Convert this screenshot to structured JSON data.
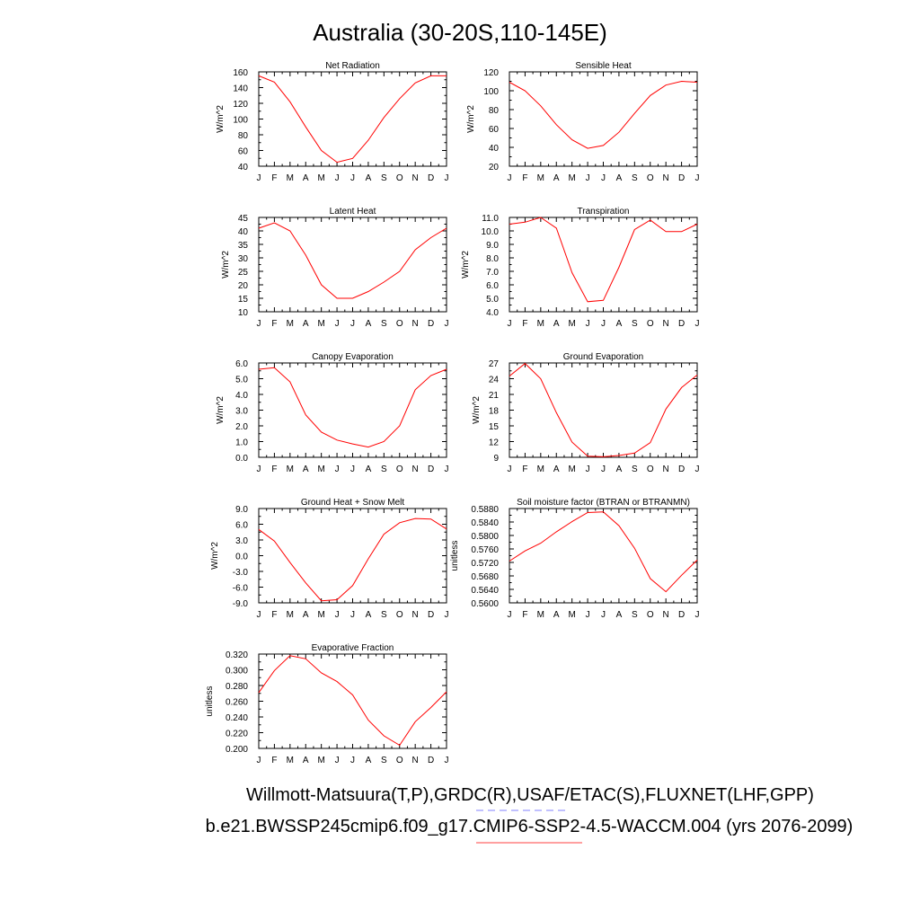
{
  "title": "Australia (30-20S,110-145E)",
  "months": [
    "J",
    "F",
    "M",
    "A",
    "M",
    "J",
    "J",
    "A",
    "S",
    "O",
    "N",
    "D",
    "J"
  ],
  "footer": {
    "line1": "Willmott-Matsuura(T,P),GRDC(R),USAF/ETAC(S),FLUXNET(LHF,GPP)",
    "line2": "b.e21.BWSSP245cmip6.f09_g17.CMIP6-SSP2-4.5-WACCM.004 (yrs 2076-2099)",
    "line1_dash_color": "#8080ff",
    "line2_line_color": "#ff4040"
  },
  "line_color": "#ff0000",
  "chart_data": [
    {
      "type": "line",
      "title": "Net Radiation",
      "ylabel": "W/m^2",
      "ylim": [
        40,
        160
      ],
      "yticks": [
        "40",
        "60",
        "80",
        "100",
        "120",
        "140",
        "160"
      ],
      "x": [
        "J",
        "F",
        "M",
        "A",
        "M",
        "J",
        "J",
        "A",
        "S",
        "O",
        "N",
        "D",
        "J"
      ],
      "values": [
        155,
        147,
        122,
        90,
        60,
        45,
        50,
        73,
        102,
        126,
        146,
        155,
        155
      ]
    },
    {
      "type": "line",
      "title": "Sensible Heat",
      "ylabel": "W/m^2",
      "ylim": [
        20,
        120
      ],
      "yticks": [
        "20",
        "40",
        "60",
        "80",
        "100",
        "120"
      ],
      "x": [
        "J",
        "F",
        "M",
        "A",
        "M",
        "J",
        "J",
        "A",
        "S",
        "O",
        "N",
        "D",
        "J"
      ],
      "values": [
        109,
        100,
        84,
        64,
        48,
        39,
        42,
        56,
        76,
        95,
        106,
        110,
        109
      ]
    },
    {
      "type": "line",
      "title": "Latent Heat",
      "ylabel": "W/m^2",
      "ylim": [
        10,
        45
      ],
      "yticks": [
        "10",
        "15",
        "20",
        "25",
        "30",
        "35",
        "40",
        "45"
      ],
      "x": [
        "J",
        "F",
        "M",
        "A",
        "M",
        "J",
        "J",
        "A",
        "S",
        "O",
        "N",
        "D",
        "J"
      ],
      "values": [
        41,
        43,
        40,
        31,
        20,
        15,
        15,
        17.5,
        21,
        25,
        33,
        37.5,
        41
      ]
    },
    {
      "type": "line",
      "title": "Transpiration",
      "ylabel": "W/m^2",
      "ylim": [
        4.0,
        11.0
      ],
      "yticks": [
        "4.0",
        "5.0",
        "6.0",
        "7.0",
        "8.0",
        "9.0",
        "10.0",
        "11.0"
      ],
      "x": [
        "J",
        "F",
        "M",
        "A",
        "M",
        "J",
        "J",
        "A",
        "S",
        "O",
        "N",
        "D",
        "J"
      ],
      "values": [
        10.5,
        10.65,
        11.0,
        10.2,
        6.9,
        4.75,
        4.85,
        7.3,
        10.1,
        10.8,
        9.95,
        9.95,
        10.5
      ]
    },
    {
      "type": "line",
      "title": "Canopy Evaporation",
      "ylabel": "W/m^2",
      "ylim": [
        0.0,
        6.0
      ],
      "yticks": [
        "0.0",
        "1.0",
        "2.0",
        "3.0",
        "4.0",
        "5.0",
        "6.0"
      ],
      "x": [
        "J",
        "F",
        "M",
        "A",
        "M",
        "J",
        "J",
        "A",
        "S",
        "O",
        "N",
        "D",
        "J"
      ],
      "values": [
        5.6,
        5.7,
        4.8,
        2.7,
        1.6,
        1.1,
        0.85,
        0.65,
        1.0,
        2.0,
        4.3,
        5.2,
        5.6
      ]
    },
    {
      "type": "line",
      "title": "Ground Evaporation",
      "ylabel": "W/m^2",
      "ylim": [
        9,
        27
      ],
      "yticks": [
        "9",
        "12",
        "15",
        "18",
        "21",
        "24",
        "27"
      ],
      "x": [
        "J",
        "F",
        "M",
        "A",
        "M",
        "J",
        "J",
        "A",
        "S",
        "O",
        "N",
        "D",
        "J"
      ],
      "values": [
        24.5,
        26.9,
        24.0,
        17.5,
        11.9,
        9.2,
        9.1,
        9.35,
        9.8,
        11.8,
        18.2,
        22.3,
        24.7
      ]
    },
    {
      "type": "line",
      "title": "Ground Heat + Snow Melt",
      "ylabel": "W/m^2",
      "ylim": [
        -9.0,
        9.0
      ],
      "yticks": [
        "-9.0",
        "-6.0",
        "-3.0",
        "0.0",
        "3.0",
        "6.0",
        "9.0"
      ],
      "x": [
        "J",
        "F",
        "M",
        "A",
        "M",
        "J",
        "J",
        "A",
        "S",
        "O",
        "N",
        "D",
        "J"
      ],
      "values": [
        5.0,
        2.8,
        -1.3,
        -5.2,
        -8.6,
        -8.4,
        -5.7,
        -0.6,
        4.1,
        6.3,
        7.1,
        7.0,
        5.1
      ]
    },
    {
      "type": "line",
      "title": "Soil moisture factor (BTRAN or BTRANMN)",
      "ylabel": "unitless",
      "ylim": [
        0.56,
        0.588
      ],
      "yticks": [
        "0.5600",
        "0.5640",
        "0.5680",
        "0.5720",
        "0.5760",
        "0.5800",
        "0.5840",
        "0.5880"
      ],
      "x": [
        "J",
        "F",
        "M",
        "A",
        "M",
        "J",
        "J",
        "A",
        "S",
        "O",
        "N",
        "D",
        "J"
      ],
      "values": [
        0.5724,
        0.5754,
        0.5777,
        0.5811,
        0.5841,
        0.5868,
        0.587,
        0.5829,
        0.5762,
        0.5672,
        0.5633,
        0.5682,
        0.5727
      ]
    },
    {
      "type": "line",
      "title": "Evaporative Fraction",
      "ylabel": "unitless",
      "ylim": [
        0.2,
        0.32
      ],
      "yticks": [
        "0.200",
        "0.220",
        "0.240",
        "0.260",
        "0.280",
        "0.300",
        "0.320"
      ],
      "x": [
        "J",
        "F",
        "M",
        "A",
        "M",
        "J",
        "J",
        "A",
        "S",
        "O",
        "N",
        "D",
        "J"
      ],
      "values": [
        0.271,
        0.299,
        0.318,
        0.314,
        0.296,
        0.285,
        0.268,
        0.236,
        0.216,
        0.204,
        0.234,
        0.252,
        0.272
      ]
    }
  ]
}
